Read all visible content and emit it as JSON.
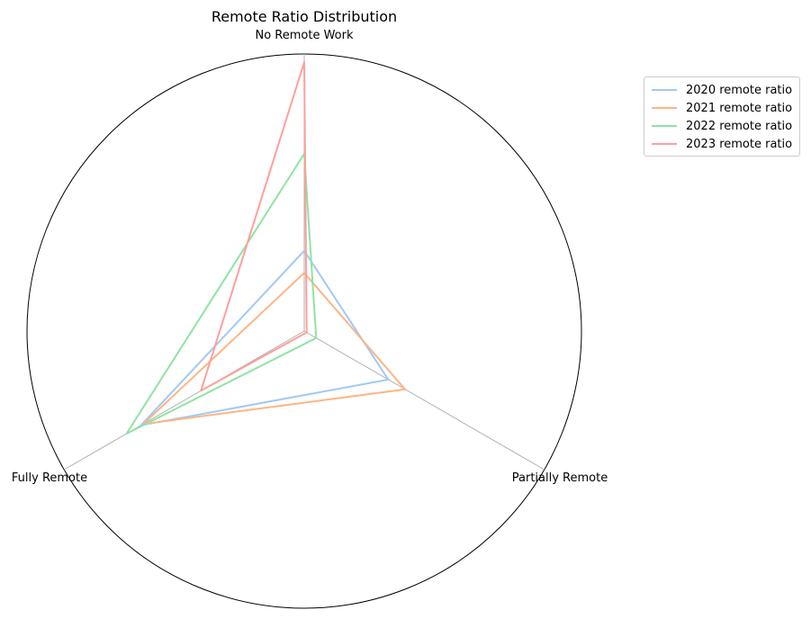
{
  "chart_data": {
    "type": "radar",
    "title": "Remote Ratio Distribution",
    "axes": [
      "No Remote Work",
      "Partially Remote",
      "Fully Remote"
    ],
    "rlim": [
      0,
      1
    ],
    "grid": true,
    "legend_position": "upper-right-outside",
    "series": [
      {
        "name": "2020 remote ratio",
        "color": "#a1c9f4",
        "values": [
          0.29,
          0.35,
          0.68
        ]
      },
      {
        "name": "2021 remote ratio",
        "color": "#ffb482",
        "values": [
          0.21,
          0.42,
          0.67
        ]
      },
      {
        "name": "2022 remote ratio",
        "color": "#8de5a1",
        "values": [
          0.64,
          0.05,
          0.74
        ]
      },
      {
        "name": "2023 remote ratio",
        "color": "#ff9f9b",
        "values": [
          0.97,
          0.01,
          0.43
        ]
      }
    ]
  }
}
